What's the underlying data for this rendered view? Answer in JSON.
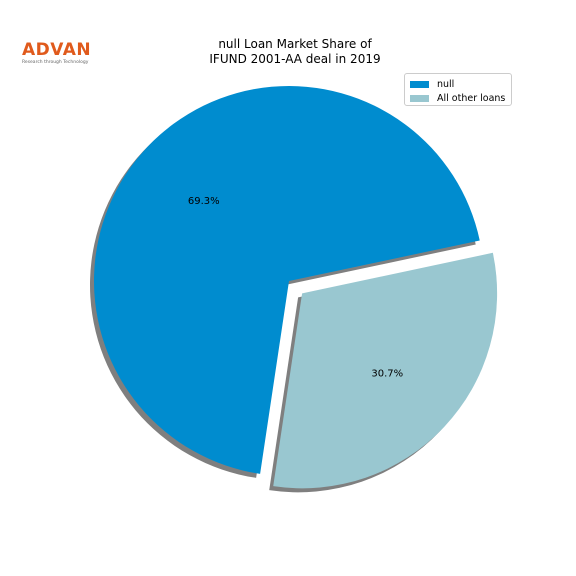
{
  "logo": {
    "text": "ADVAN",
    "tagline": "Research through Technology"
  },
  "title": {
    "line1": "null Loan Market Share of",
    "line2": "IFUND 2001-AA deal in 2019"
  },
  "chart_data": {
    "type": "pie",
    "labels": [
      "null",
      "All other loans"
    ],
    "values": [
      69.3,
      30.7
    ],
    "percent_labels": [
      "69.3%",
      "30.7%"
    ],
    "colors": [
      "#008ccf",
      "#99c7d0"
    ],
    "exploded": [
      false,
      true
    ],
    "shadow": true,
    "legend_position": "top-right",
    "title": "null Loan Market Share of IFUND 2001-AA deal in 2019"
  }
}
